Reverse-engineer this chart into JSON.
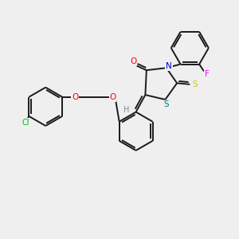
{
  "bg_color": "#efefef",
  "bond_color": "#1a1a1a",
  "atom_colors": {
    "O": "#ff0000",
    "N": "#0000cc",
    "S_yellow": "#cccc00",
    "S_teal": "#008080",
    "F": "#ff00ff",
    "Cl": "#00bb00",
    "H": "#888888"
  },
  "lw": 1.4
}
